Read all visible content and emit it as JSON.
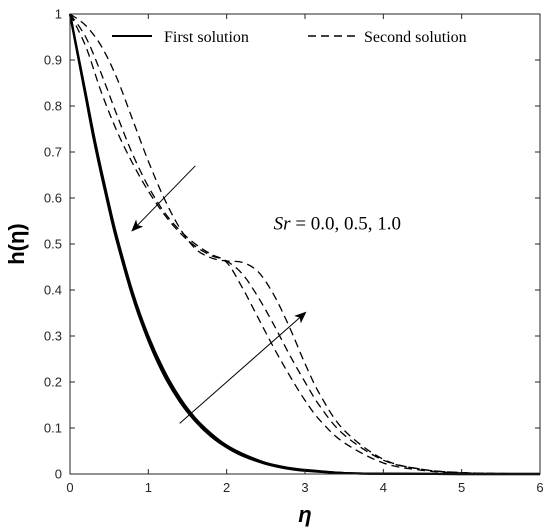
{
  "chart_data": {
    "type": "line",
    "title": "",
    "xlabel": "η",
    "ylabel": "h(η)",
    "xlim": [
      0,
      6
    ],
    "ylim": [
      0,
      1
    ],
    "xticks": [
      0,
      1,
      2,
      3,
      4,
      5,
      6
    ],
    "yticks": [
      0,
      0.1,
      0.2,
      0.3,
      0.4,
      0.5,
      0.6,
      0.7,
      0.8,
      0.9,
      1
    ],
    "grid": false,
    "legend": {
      "position": "top",
      "entries": [
        {
          "label": "First solution",
          "style": "solid"
        },
        {
          "label": "Second solution",
          "style": "dashed"
        }
      ]
    },
    "annotation": {
      "text_italic": "Sr",
      "text_rest": " = 0.0, 0.5, 1.0",
      "x": 2.6,
      "y": 0.545
    },
    "arrows": [
      {
        "from": [
          1.6,
          0.67
        ],
        "to": [
          0.8,
          0.53
        ]
      },
      {
        "from": [
          1.4,
          0.11
        ],
        "to": [
          3.0,
          0.35
        ]
      }
    ],
    "series": [
      {
        "group": "first",
        "style": "solid",
        "x": [
          0,
          0.1,
          0.2,
          0.3,
          0.4,
          0.5,
          0.6,
          0.8,
          1.0,
          1.2,
          1.4,
          1.6,
          1.8,
          2.0,
          2.2,
          2.5,
          2.8,
          3.0,
          3.5,
          4.0,
          5.0,
          6.0
        ],
        "y": [
          1,
          0.91,
          0.82,
          0.73,
          0.65,
          0.575,
          0.505,
          0.385,
          0.29,
          0.215,
          0.158,
          0.115,
          0.082,
          0.058,
          0.04,
          0.022,
          0.011,
          0.007,
          0.002,
          0.0005,
          0,
          0
        ]
      },
      {
        "group": "first",
        "style": "solid",
        "x": [
          0,
          0.1,
          0.2,
          0.3,
          0.4,
          0.5,
          0.6,
          0.8,
          1.0,
          1.2,
          1.4,
          1.6,
          1.8,
          2.0,
          2.2,
          2.5,
          2.8,
          3.0,
          3.5,
          4.0,
          5.0,
          6.0
        ],
        "y": [
          1,
          0.912,
          0.825,
          0.735,
          0.655,
          0.58,
          0.51,
          0.39,
          0.295,
          0.22,
          0.162,
          0.118,
          0.085,
          0.06,
          0.042,
          0.023,
          0.012,
          0.008,
          0.002,
          0.0006,
          0,
          0
        ]
      },
      {
        "group": "first",
        "style": "solid",
        "x": [
          0,
          0.1,
          0.2,
          0.3,
          0.4,
          0.5,
          0.6,
          0.8,
          1.0,
          1.2,
          1.4,
          1.6,
          1.8,
          2.0,
          2.2,
          2.5,
          2.8,
          3.0,
          3.5,
          4.0,
          5.0,
          6.0
        ],
        "y": [
          1,
          0.914,
          0.828,
          0.74,
          0.66,
          0.585,
          0.515,
          0.395,
          0.3,
          0.225,
          0.166,
          0.121,
          0.088,
          0.062,
          0.044,
          0.024,
          0.013,
          0.009,
          0.002,
          0.0007,
          0,
          0
        ]
      },
      {
        "group": "second",
        "style": "dashed",
        "x": [
          0,
          0.2,
          0.4,
          0.6,
          0.8,
          1.0,
          1.2,
          1.4,
          1.6,
          1.8,
          2.0,
          2.2,
          2.4,
          2.6,
          2.8,
          3.0,
          3.2,
          3.5,
          4.0,
          4.5,
          5.0,
          5.5,
          6.0
        ],
        "y": [
          1,
          0.975,
          0.93,
          0.86,
          0.77,
          0.68,
          0.6,
          0.535,
          0.49,
          0.47,
          0.463,
          0.46,
          0.44,
          0.39,
          0.32,
          0.24,
          0.17,
          0.095,
          0.032,
          0.01,
          0.003,
          0.001,
          0
        ]
      },
      {
        "group": "second",
        "style": "dashed",
        "x": [
          0,
          0.2,
          0.4,
          0.6,
          0.8,
          1.0,
          1.2,
          1.4,
          1.6,
          1.8,
          2.0,
          2.2,
          2.4,
          2.6,
          2.8,
          3.0,
          3.2,
          3.5,
          4.0,
          4.5,
          5.0,
          5.5,
          6.0
        ],
        "y": [
          1,
          0.95,
          0.87,
          0.78,
          0.695,
          0.625,
          0.57,
          0.53,
          0.5,
          0.478,
          0.463,
          0.435,
          0.385,
          0.325,
          0.26,
          0.2,
          0.145,
          0.085,
          0.03,
          0.01,
          0.003,
          0.001,
          0
        ]
      },
      {
        "group": "second",
        "style": "dashed",
        "x": [
          0,
          0.2,
          0.4,
          0.6,
          0.8,
          1.0,
          1.2,
          1.4,
          1.6,
          1.8,
          2.0,
          2.2,
          2.4,
          2.6,
          2.8,
          3.0,
          3.2,
          3.5,
          4.0,
          4.5,
          5.0,
          5.5,
          6.0
        ],
        "y": [
          1,
          0.93,
          0.83,
          0.745,
          0.675,
          0.615,
          0.565,
          0.525,
          0.495,
          0.475,
          0.46,
          0.405,
          0.34,
          0.275,
          0.215,
          0.16,
          0.115,
          0.068,
          0.024,
          0.008,
          0.002,
          0.0005,
          0
        ]
      }
    ]
  }
}
